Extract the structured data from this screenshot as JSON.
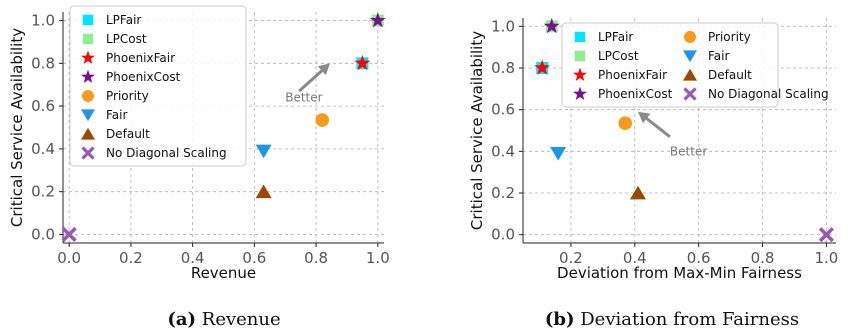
{
  "chart_data": [
    {
      "type": "scatter",
      "caption_tag": "(a)",
      "caption_text": "Revenue",
      "xlabel": "Revenue",
      "ylabel": "Critical Service Availability",
      "xlim": [
        -0.02,
        1.02
      ],
      "ylim": [
        -0.04,
        1.04
      ],
      "xticks": [
        "0.0",
        "0.2",
        "0.4",
        "0.6",
        "0.8",
        "1.0"
      ],
      "yticks": [
        "0.0",
        "0.2",
        "0.4",
        "0.6",
        "0.8",
        "1.0"
      ],
      "grid": true,
      "legend_position": "top-left",
      "annotation": {
        "text": "Better",
        "x": 0.7,
        "y": 0.64,
        "arrow_from": [
          0.745,
          0.67
        ],
        "arrow_to": [
          0.845,
          0.8
        ]
      },
      "series": [
        {
          "name": "LPFair",
          "marker": "square",
          "color": "#00e5ff",
          "x": 0.95,
          "y": 0.8
        },
        {
          "name": "LPCost",
          "marker": "square",
          "color": "#90ee90",
          "x": 1.0,
          "y": 1.0
        },
        {
          "name": "PhoenixFair",
          "marker": "star",
          "color": "#ff0000",
          "x": 0.95,
          "y": 0.8
        },
        {
          "name": "PhoenixCost",
          "marker": "star",
          "color": "#7b0f8f",
          "x": 1.0,
          "y": 1.0
        },
        {
          "name": "Priority",
          "marker": "circle",
          "color": "#f59a1a",
          "x": 0.82,
          "y": 0.535
        },
        {
          "name": "Fair",
          "marker": "triangle-down",
          "color": "#1f95e6",
          "x": 0.63,
          "y": 0.39
        },
        {
          "name": "Default",
          "marker": "triangle-up",
          "color": "#9a4a00",
          "x": 0.63,
          "y": 0.2
        },
        {
          "name": "No Diagonal Scaling",
          "marker": "x",
          "color": "#9b59b6",
          "x": 0.0,
          "y": 0.0
        }
      ]
    },
    {
      "type": "scatter",
      "caption_tag": "(b)",
      "caption_text": "Deviation from Fairness",
      "xlabel": "Deviation from Max-Min Fairness",
      "ylabel": "Critical Service Availability",
      "xlim": [
        0.05,
        1.03
      ],
      "ylim": [
        -0.04,
        1.04
      ],
      "xticks": [
        "0.2",
        "0.4",
        "0.6",
        "0.8",
        "1.0"
      ],
      "yticks": [
        "0.0",
        "0.2",
        "0.4",
        "0.6",
        "0.8",
        "1.0"
      ],
      "grid": true,
      "legend_position": "top-right",
      "annotation": {
        "text": "Better",
        "x": 0.51,
        "y": 0.4,
        "arrow_from": [
          0.51,
          0.47
        ],
        "arrow_to": [
          0.41,
          0.59
        ]
      },
      "series": [
        {
          "name": "LPFair",
          "marker": "square",
          "color": "#00e5ff",
          "x": 0.11,
          "y": 0.8
        },
        {
          "name": "LPCost",
          "marker": "square",
          "color": "#90ee90",
          "x": 0.14,
          "y": 1.0
        },
        {
          "name": "PhoenixFair",
          "marker": "star",
          "color": "#ff0000",
          "x": 0.11,
          "y": 0.8
        },
        {
          "name": "PhoenixCost",
          "marker": "star",
          "color": "#7b0f8f",
          "x": 0.14,
          "y": 1.0
        },
        {
          "name": "Priority",
          "marker": "circle",
          "color": "#f59a1a",
          "x": 0.37,
          "y": 0.535
        },
        {
          "name": "Fair",
          "marker": "triangle-down",
          "color": "#1f95e6",
          "x": 0.16,
          "y": 0.39
        },
        {
          "name": "Default",
          "marker": "triangle-up",
          "color": "#9a4a00",
          "x": 0.41,
          "y": 0.2
        },
        {
          "name": "No Diagonal Scaling",
          "marker": "x",
          "color": "#9b59b6",
          "x": 1.0,
          "y": 0.0
        }
      ]
    }
  ]
}
